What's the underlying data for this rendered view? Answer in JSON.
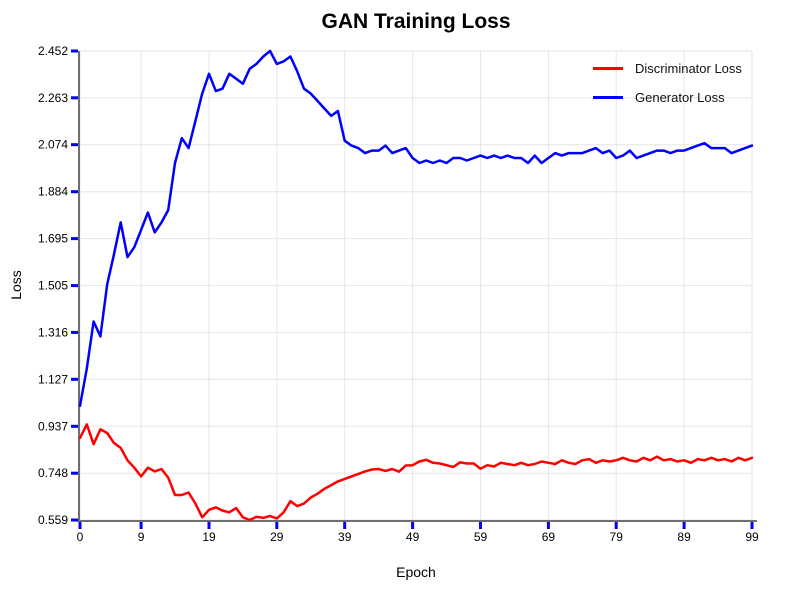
{
  "title": "GAN Training Loss",
  "colors": {
    "grid": "#e6e6e6",
    "axis": "#6f6f6f",
    "tick": "#0000ff",
    "text": "#000000",
    "discriminator_red": "#ff0000",
    "generator_blue": "#0000ff"
  },
  "chart_data": {
    "type": "line",
    "title": "GAN Training Loss",
    "xlabel": "Epoch",
    "ylabel": "Loss",
    "grid": true,
    "legend_position": "top-right",
    "xlim": [
      0,
      99
    ],
    "ylim": [
      0.559,
      2.452
    ],
    "x_ticks": [
      0,
      9,
      19,
      29,
      39,
      49,
      59,
      69,
      79,
      89,
      99
    ],
    "y_ticks": [
      0.559,
      0.748,
      0.937,
      1.127,
      1.316,
      1.505,
      1.695,
      1.884,
      2.074,
      2.263,
      2.452
    ],
    "x": [
      0,
      1,
      2,
      3,
      4,
      5,
      6,
      7,
      8,
      9,
      10,
      11,
      12,
      13,
      14,
      15,
      16,
      17,
      18,
      19,
      20,
      21,
      22,
      23,
      24,
      25,
      26,
      27,
      28,
      29,
      30,
      31,
      32,
      33,
      34,
      35,
      36,
      37,
      38,
      39,
      40,
      41,
      42,
      43,
      44,
      45,
      46,
      47,
      48,
      49,
      50,
      51,
      52,
      53,
      54,
      55,
      56,
      57,
      58,
      59,
      60,
      61,
      62,
      63,
      64,
      65,
      66,
      67,
      68,
      69,
      70,
      71,
      72,
      73,
      74,
      75,
      76,
      77,
      78,
      79,
      80,
      81,
      82,
      83,
      84,
      85,
      86,
      87,
      88,
      89,
      90,
      91,
      92,
      93,
      94,
      95,
      96,
      97,
      98,
      99
    ],
    "series": [
      {
        "name": "Discriminator Loss",
        "color": "#ff0000",
        "values": [
          0.89,
          0.945,
          0.865,
          0.925,
          0.91,
          0.87,
          0.85,
          0.8,
          0.77,
          0.735,
          0.77,
          0.755,
          0.765,
          0.73,
          0.66,
          0.66,
          0.67,
          0.625,
          0.57,
          0.6,
          0.61,
          0.597,
          0.59,
          0.607,
          0.57,
          0.559,
          0.572,
          0.568,
          0.575,
          0.565,
          0.59,
          0.635,
          0.615,
          0.625,
          0.65,
          0.665,
          0.685,
          0.7,
          0.715,
          0.725,
          0.735,
          0.745,
          0.755,
          0.763,
          0.765,
          0.757,
          0.765,
          0.754,
          0.779,
          0.78,
          0.795,
          0.802,
          0.79,
          0.787,
          0.78,
          0.773,
          0.792,
          0.787,
          0.787,
          0.766,
          0.78,
          0.775,
          0.79,
          0.785,
          0.78,
          0.79,
          0.78,
          0.785,
          0.795,
          0.79,
          0.785,
          0.8,
          0.79,
          0.785,
          0.8,
          0.805,
          0.79,
          0.8,
          0.795,
          0.8,
          0.81,
          0.8,
          0.795,
          0.81,
          0.8,
          0.815,
          0.8,
          0.805,
          0.795,
          0.8,
          0.79,
          0.805,
          0.8,
          0.81,
          0.8,
          0.805,
          0.795,
          0.81,
          0.8,
          0.81
        ]
      },
      {
        "name": "Generator Loss",
        "color": "#0000ff",
        "values": [
          1.02,
          1.17,
          1.36,
          1.3,
          1.51,
          1.63,
          1.76,
          1.62,
          1.66,
          1.73,
          1.8,
          1.72,
          1.76,
          1.81,
          2.0,
          2.1,
          2.06,
          2.17,
          2.28,
          2.36,
          2.29,
          2.3,
          2.36,
          2.34,
          2.32,
          2.38,
          2.4,
          2.43,
          2.452,
          2.4,
          2.41,
          2.43,
          2.37,
          2.3,
          2.28,
          2.25,
          2.22,
          2.19,
          2.21,
          2.09,
          2.07,
          2.06,
          2.04,
          2.05,
          2.05,
          2.07,
          2.04,
          2.05,
          2.06,
          2.02,
          2.0,
          2.01,
          2.0,
          2.01,
          2.0,
          2.02,
          2.02,
          2.01,
          2.02,
          2.03,
          2.02,
          2.03,
          2.02,
          2.03,
          2.02,
          2.02,
          2.0,
          2.03,
          2.0,
          2.02,
          2.04,
          2.03,
          2.04,
          2.04,
          2.04,
          2.05,
          2.06,
          2.04,
          2.05,
          2.02,
          2.03,
          2.05,
          2.02,
          2.03,
          2.04,
          2.05,
          2.05,
          2.04,
          2.05,
          2.05,
          2.06,
          2.07,
          2.08,
          2.06,
          2.06,
          2.06,
          2.04,
          2.05,
          2.06,
          2.07
        ]
      }
    ]
  }
}
